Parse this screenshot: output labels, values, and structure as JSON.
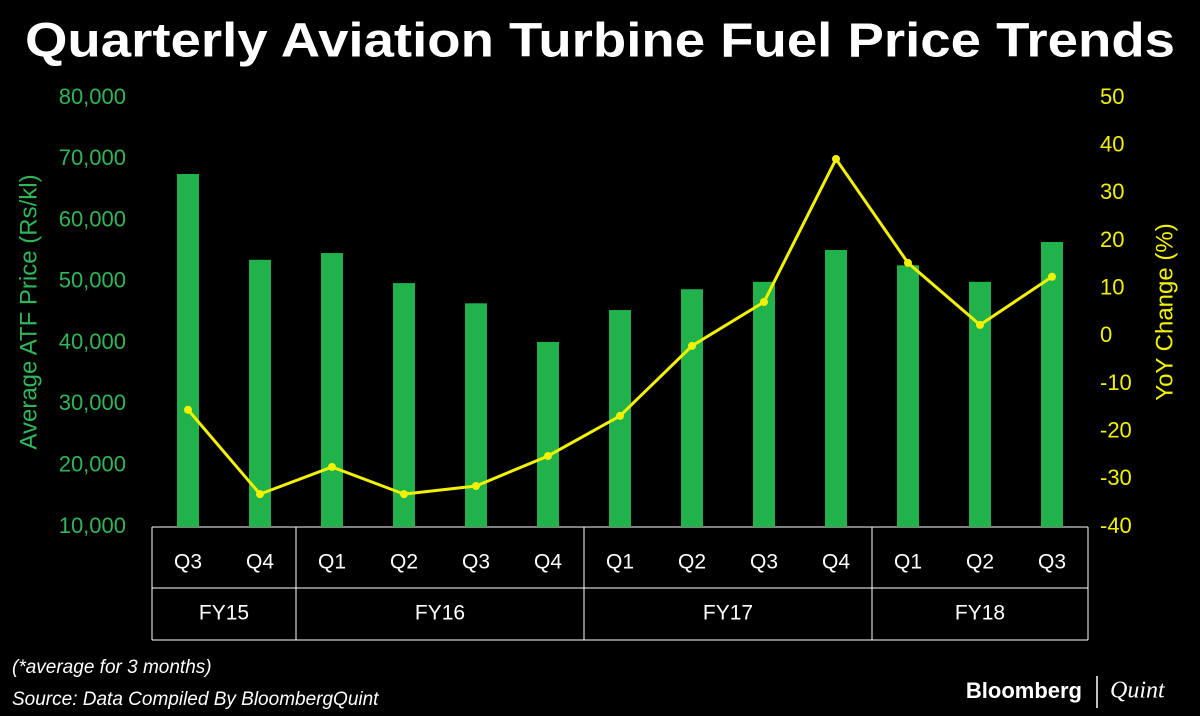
{
  "chart_data": {
    "type": "bar_line",
    "title": "Quarterly Aviation Turbine Fuel Price Trends",
    "y_label": "Average ATF Price (Rs/kl)",
    "y2_label": "YoY Change (%)",
    "categories": [
      "Q3",
      "Q4",
      "Q1",
      "Q2",
      "Q3",
      "Q4",
      "Q1",
      "Q2",
      "Q3",
      "Q4",
      "Q1",
      "Q2",
      "Q3"
    ],
    "groups": [
      {
        "name": "FY15",
        "span": 2
      },
      {
        "name": "FY16",
        "span": 4
      },
      {
        "name": "FY17",
        "span": 4
      },
      {
        "name": "FY18",
        "span": 3
      }
    ],
    "series": [
      {
        "type": "bar",
        "color": "#21b24b",
        "values": [
          67600,
          53600,
          54700,
          49800,
          46500,
          40200,
          45400,
          48800,
          50000,
          55200,
          52700,
          50000,
          56500
        ]
      },
      {
        "type": "line",
        "axis": "y2",
        "color": "#f2f200",
        "values": [
          -15.4,
          -33.1,
          -27.4,
          -33.1,
          -31.4,
          -25.1,
          -16.7,
          -2.0,
          7.2,
          37.2,
          15.4,
          2.4,
          12.5
        ]
      }
    ],
    "ylim": [
      10000,
      80000
    ],
    "yticks": [
      {
        "value": 10000,
        "label": "10,000"
      },
      {
        "value": 20000,
        "label": "20,000"
      },
      {
        "value": 30000,
        "label": "30,000"
      },
      {
        "value": 40000,
        "label": "40,000"
      },
      {
        "value": 50000,
        "label": "50,000"
      },
      {
        "value": 60000,
        "label": "60,000"
      },
      {
        "value": 70000,
        "label": "70,000"
      },
      {
        "value": 80000,
        "label": "80,000"
      }
    ],
    "y2lim": [
      -40,
      50
    ],
    "y2ticks": [
      -40,
      -30,
      -20,
      -10,
      0,
      10,
      20,
      30,
      40,
      50
    ],
    "note": "(*average for 3 months)",
    "source": "Source: Data Compiled By BloombergQuint",
    "logo": [
      "Bloomberg",
      "Quint"
    ]
  }
}
